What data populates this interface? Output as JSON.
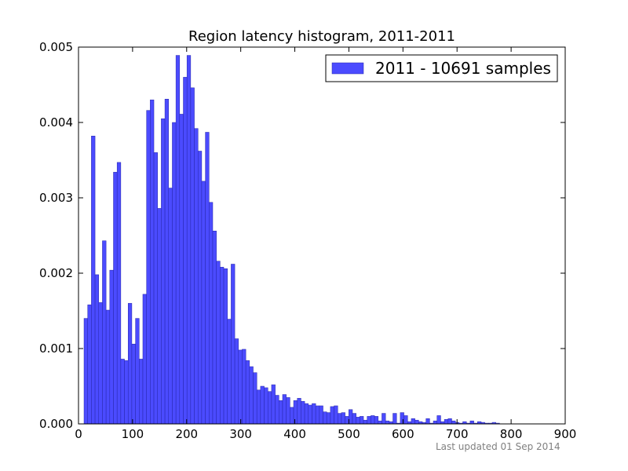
{
  "chart_data": {
    "type": "bar",
    "title": "Region latency histogram, 2011-2011",
    "xlabel": "",
    "ylabel": "",
    "xlim": [
      0,
      900
    ],
    "ylim": [
      0,
      0.005
    ],
    "bin_width": 6.8,
    "xticks": [
      0,
      100,
      200,
      300,
      400,
      500,
      600,
      700,
      800,
      900
    ],
    "xtick_labels": [
      "0",
      "100",
      "200",
      "300",
      "400",
      "500",
      "600",
      "700",
      "800",
      "900"
    ],
    "yticks": [
      0,
      0.001,
      0.002,
      0.003,
      0.004,
      0.005
    ],
    "ytick_labels": [
      "0.000",
      "0.001",
      "0.002",
      "0.003",
      "0.004",
      "0.005"
    ],
    "grid": false,
    "legend": {
      "position": "top-right",
      "entries": [
        "2011 - 10691 samples"
      ]
    },
    "colors": {
      "bar": "#4B4BFF",
      "bar_edge": "#2626a8",
      "axes": "#000000",
      "footer": "#808080"
    },
    "series": [
      {
        "name": "2011 - 10691 samples",
        "x": [
          10.2,
          17.0,
          23.8,
          30.6,
          37.4,
          44.2,
          51.0,
          57.8,
          64.6,
          71.4,
          78.2,
          85.0,
          91.8,
          98.6,
          105.4,
          112.2,
          119.0,
          125.8,
          132.6,
          139.4,
          146.2,
          153.0,
          159.8,
          166.6,
          173.4,
          180.2,
          187.0,
          193.8,
          200.6,
          207.4,
          214.2,
          221.0,
          227.8,
          234.6,
          241.4,
          248.2,
          255.0,
          261.8,
          268.6,
          275.4,
          282.2,
          289.0,
          295.8,
          302.6,
          309.4,
          316.2,
          323.0,
          329.8,
          336.6,
          343.4,
          350.2,
          357.0,
          363.8,
          370.6,
          377.4,
          384.2,
          391.0,
          397.8,
          404.6,
          411.4,
          418.2,
          425.0,
          431.8,
          438.6,
          445.4,
          452.2,
          459.0,
          465.8,
          472.6,
          479.4,
          486.2,
          493.0,
          499.8,
          506.6,
          513.4,
          520.2,
          527.0,
          533.8,
          540.6,
          547.4,
          554.2,
          561.0,
          567.8,
          574.6,
          581.4,
          588.2,
          595.0,
          601.8,
          608.6,
          615.4,
          622.2,
          629.0,
          635.8,
          642.6,
          649.4,
          656.2,
          663.0,
          669.8,
          676.6,
          683.4,
          690.2,
          697.0,
          703.8,
          710.6,
          717.4,
          724.2,
          731.0,
          737.8,
          744.6,
          751.4,
          758.2,
          765.0,
          771.8
        ],
        "values": [
          0.0014,
          0.00158,
          0.00382,
          0.00198,
          0.00161,
          0.00243,
          0.00151,
          0.00204,
          0.00334,
          0.00347,
          0.00086,
          0.00084,
          0.0016,
          0.00106,
          0.0014,
          0.00086,
          0.00172,
          0.00416,
          0.0043,
          0.0036,
          0.00286,
          0.00405,
          0.00431,
          0.00313,
          0.004,
          0.00489,
          0.00411,
          0.0046,
          0.00489,
          0.00446,
          0.00392,
          0.00362,
          0.00322,
          0.00387,
          0.00294,
          0.00256,
          0.00216,
          0.00208,
          0.00206,
          0.00139,
          0.00212,
          0.00113,
          0.00098,
          0.00099,
          0.00084,
          0.00076,
          0.00068,
          0.00045,
          0.0005,
          0.00048,
          0.00043,
          0.00052,
          0.00038,
          0.00031,
          0.00039,
          0.00035,
          0.00022,
          0.00031,
          0.00034,
          0.0003,
          0.00027,
          0.00025,
          0.00027,
          0.00024,
          0.00024,
          0.00016,
          0.00015,
          0.00023,
          0.00024,
          0.00014,
          0.00015,
          0.0001,
          0.00019,
          0.00014,
          9e-05,
          0.0001,
          5e-05,
          0.0001,
          0.00011,
          0.0001,
          4e-05,
          0.00014,
          4e-05,
          3e-05,
          0.00014,
          1e-05,
          0.00015,
          0.00011,
          3e-05,
          7e-05,
          5e-05,
          3e-05,
          2e-05,
          7e-05,
          1e-05,
          4e-05,
          0.00011,
          3e-05,
          6e-05,
          7e-05,
          4e-05,
          2e-05,
          1e-05,
          3e-05,
          1e-05,
          4e-05,
          1e-05,
          3e-05,
          2e-05,
          1e-05,
          1e-05,
          2e-05,
          1e-05
        ]
      }
    ]
  },
  "footer": {
    "text": "Last updated 01 Sep 2014"
  }
}
